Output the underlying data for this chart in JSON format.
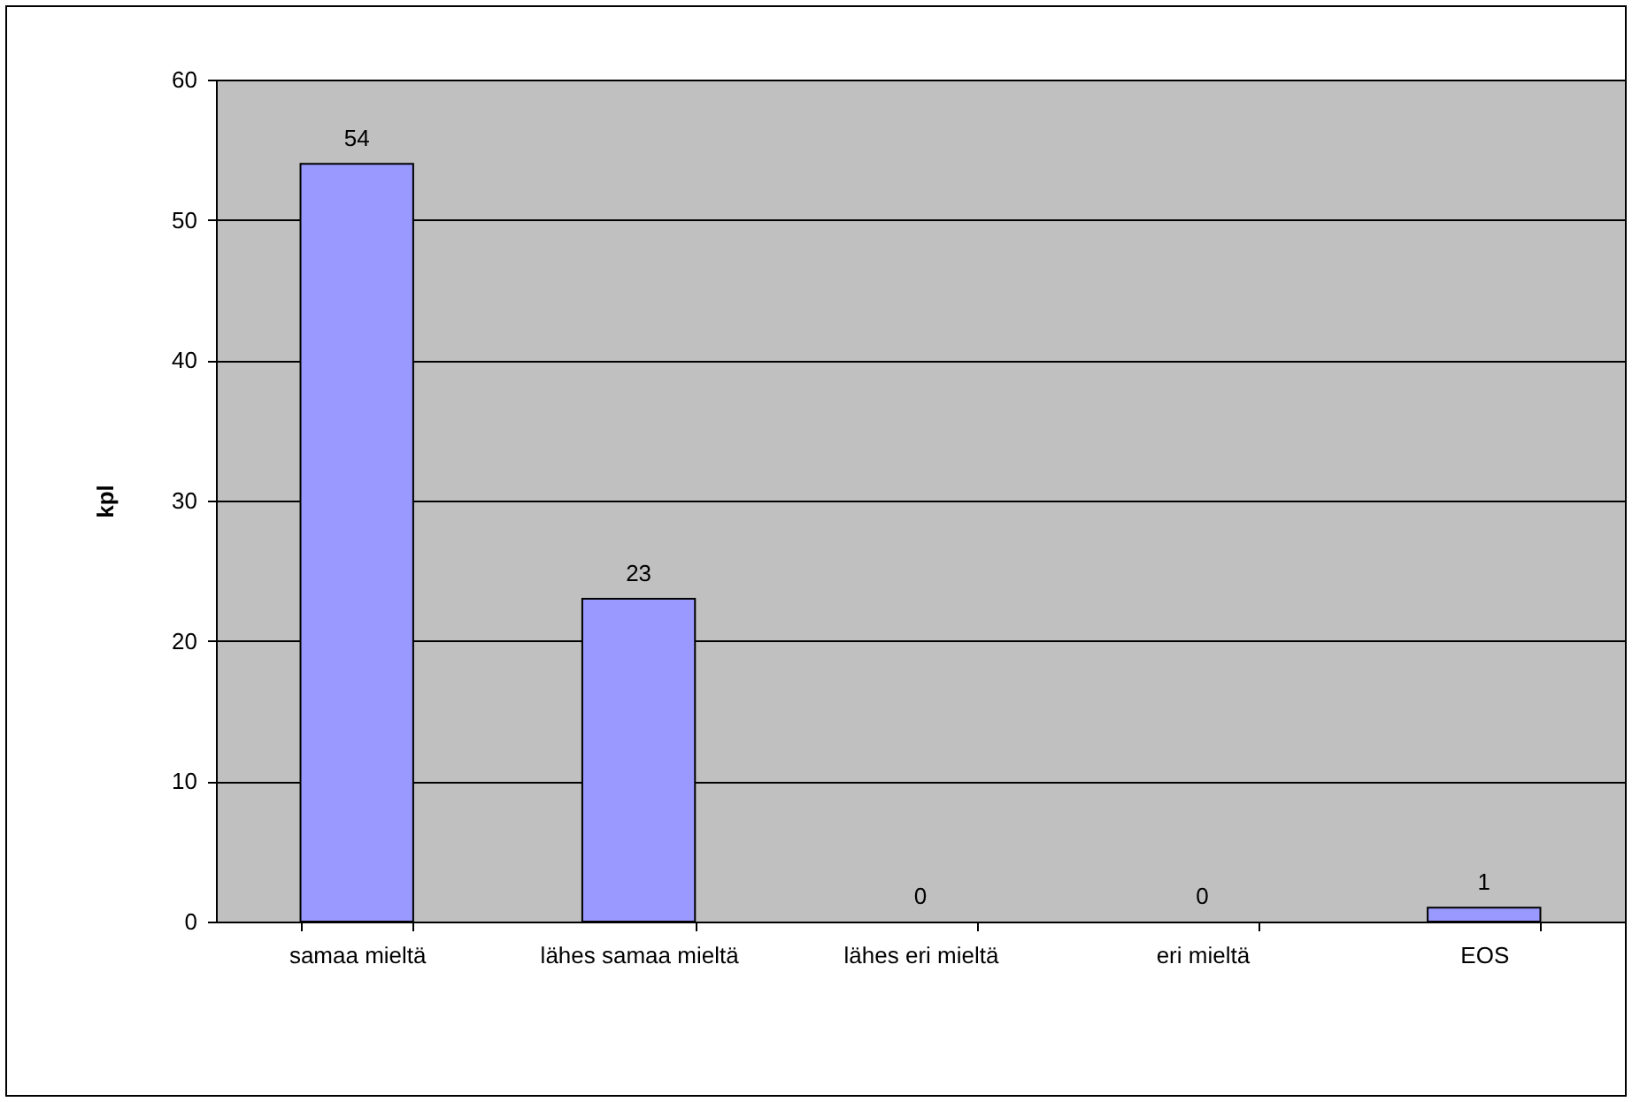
{
  "chart_data": {
    "type": "bar",
    "ylabel": "kpl",
    "categories": [
      "samaa mieltä",
      "lähes samaa mieltä",
      "lähes eri mieltä",
      "eri mieltä",
      "EOS"
    ],
    "values": [
      54,
      23,
      0,
      0,
      1
    ],
    "color": "#9999ff",
    "ylim": [
      0,
      60
    ],
    "yticks": [
      0,
      10,
      20,
      30,
      40,
      50,
      60
    ],
    "grid": "y",
    "data_labels": true
  }
}
